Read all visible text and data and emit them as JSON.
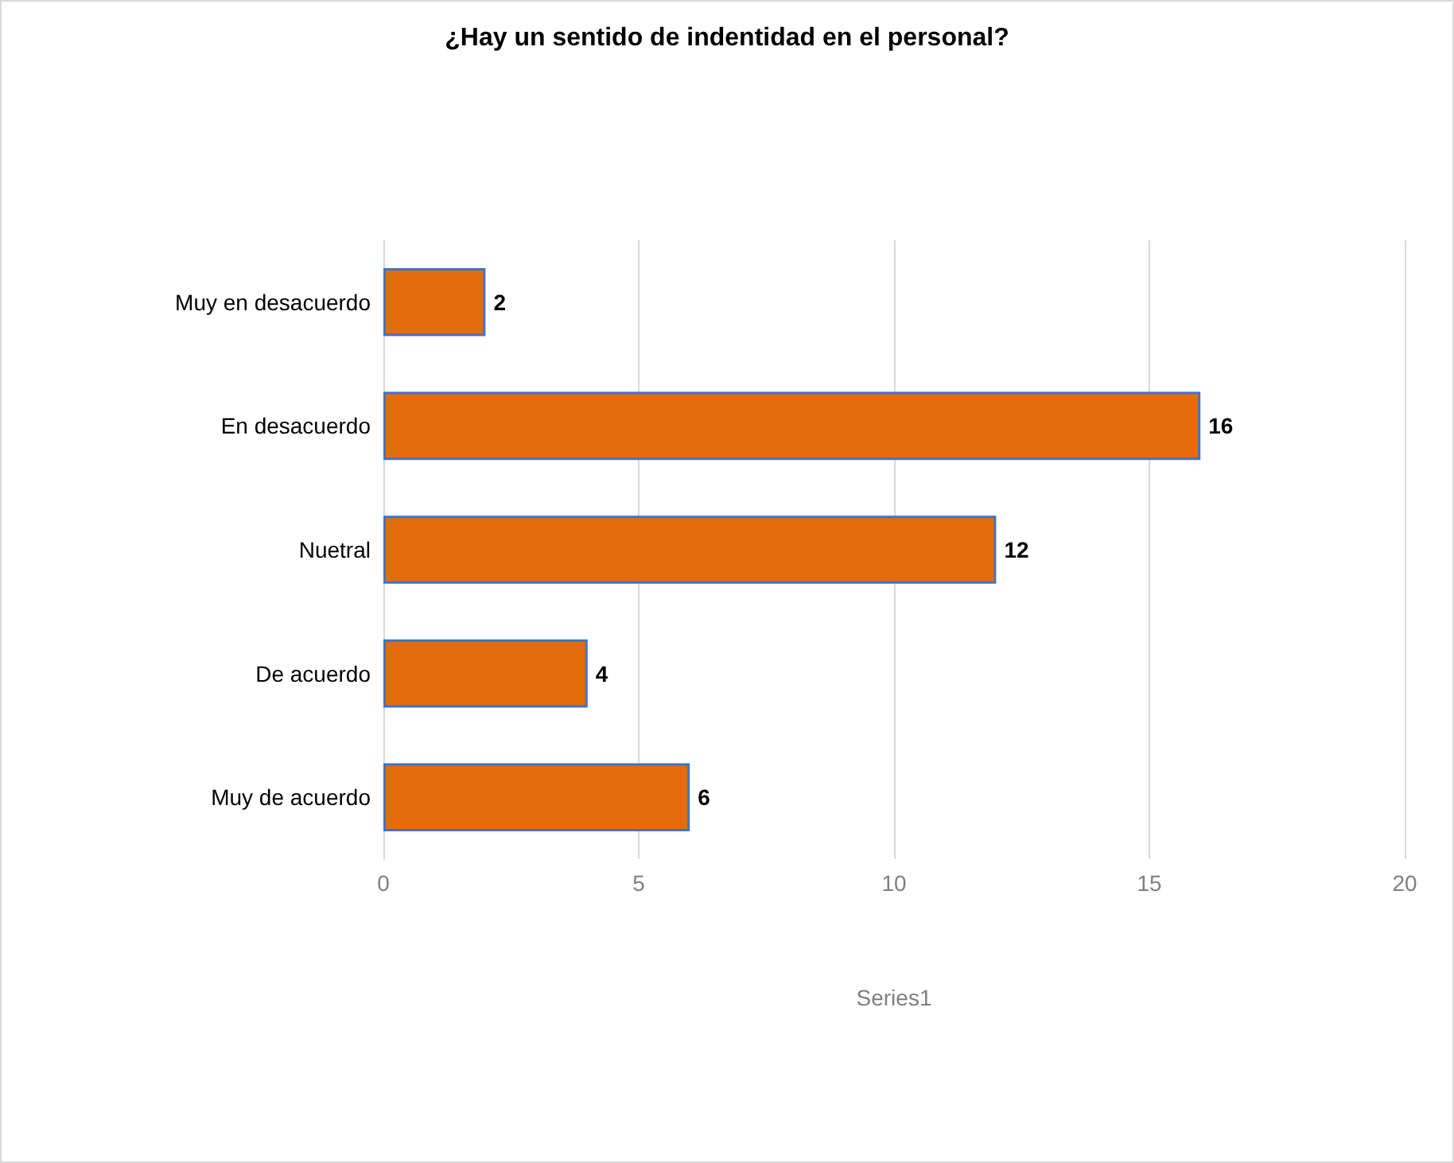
{
  "chart_data": {
    "type": "bar",
    "orientation": "horizontal",
    "title": "¿Hay un sentido de indentidad en el personal?",
    "xlabel": "Series1",
    "categories": [
      "Muy en desacuerdo",
      "En desacuerdo",
      "Nuetral",
      "De acuerdo",
      "Muy de acuerdo"
    ],
    "values": [
      2,
      16,
      12,
      4,
      6
    ],
    "color": "#e46c0a",
    "xlim": [
      0,
      20
    ],
    "xticks": [
      0,
      5,
      10,
      15,
      20
    ],
    "grid": "x",
    "data_labels": true
  }
}
